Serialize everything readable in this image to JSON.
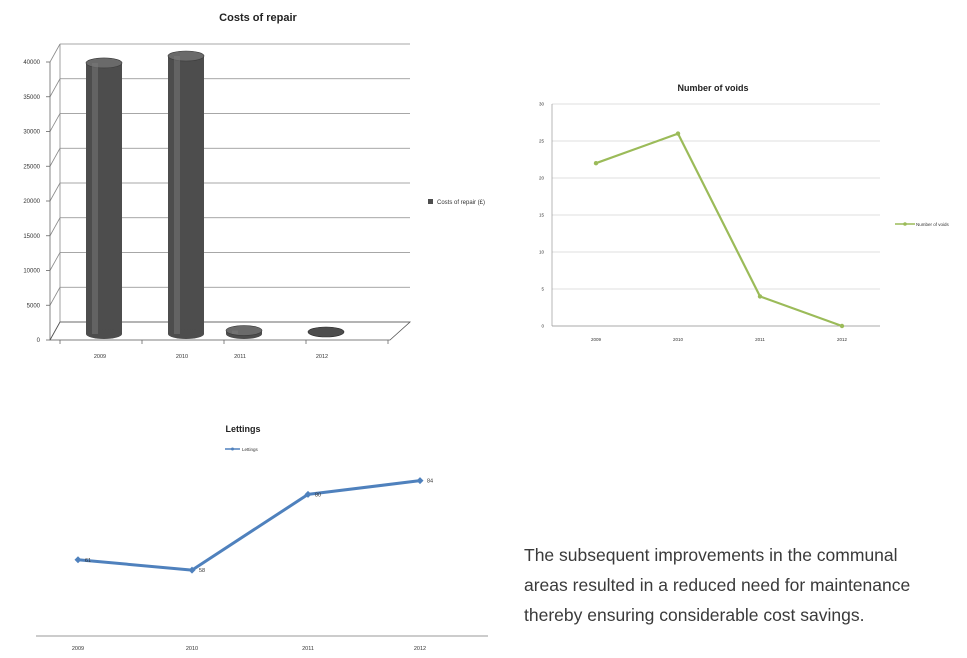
{
  "chart_data": [
    {
      "type": "bar",
      "title": "Costs of repair",
      "categories": [
        "2009",
        "2010",
        "2011",
        "2012"
      ],
      "series": [
        {
          "name": "Costs of repair (£)",
          "values": [
            39000,
            40000,
            500,
            300
          ]
        }
      ],
      "yticks": [
        "0",
        "5000",
        "10000",
        "15000",
        "20000",
        "25000",
        "30000",
        "35000",
        "40000"
      ],
      "ylim": [
        0,
        40000
      ],
      "grid": true,
      "legend": "right",
      "colors": {
        "bar": "#4d4d4d"
      }
    },
    {
      "type": "line",
      "title": "Number of voids",
      "categories": [
        "2009",
        "2010",
        "2011",
        "2012"
      ],
      "series": [
        {
          "name": "Number of voids",
          "values": [
            22,
            26,
            4,
            0
          ]
        }
      ],
      "yticks": [
        "0",
        "5",
        "10",
        "15",
        "20",
        "25",
        "30"
      ],
      "ylim": [
        0,
        30
      ],
      "grid": true,
      "legend": "right",
      "colors": {
        "line": "#9bbb59"
      }
    },
    {
      "type": "line",
      "title": "Lettings",
      "categories": [
        "2009",
        "2010",
        "2011",
        "2012"
      ],
      "series": [
        {
          "name": "Lettings",
          "values": [
            61,
            58,
            80,
            84
          ]
        }
      ],
      "data_labels": [
        "61",
        "58",
        "80",
        "84"
      ],
      "ylim": [
        40,
        90
      ],
      "grid": false,
      "legend": "top",
      "colors": {
        "line": "#4f81bd"
      }
    }
  ],
  "caption": "The subsequent improvements in the communal areas resulted in a reduced need for maintenance thereby ensuring considerable cost savings."
}
